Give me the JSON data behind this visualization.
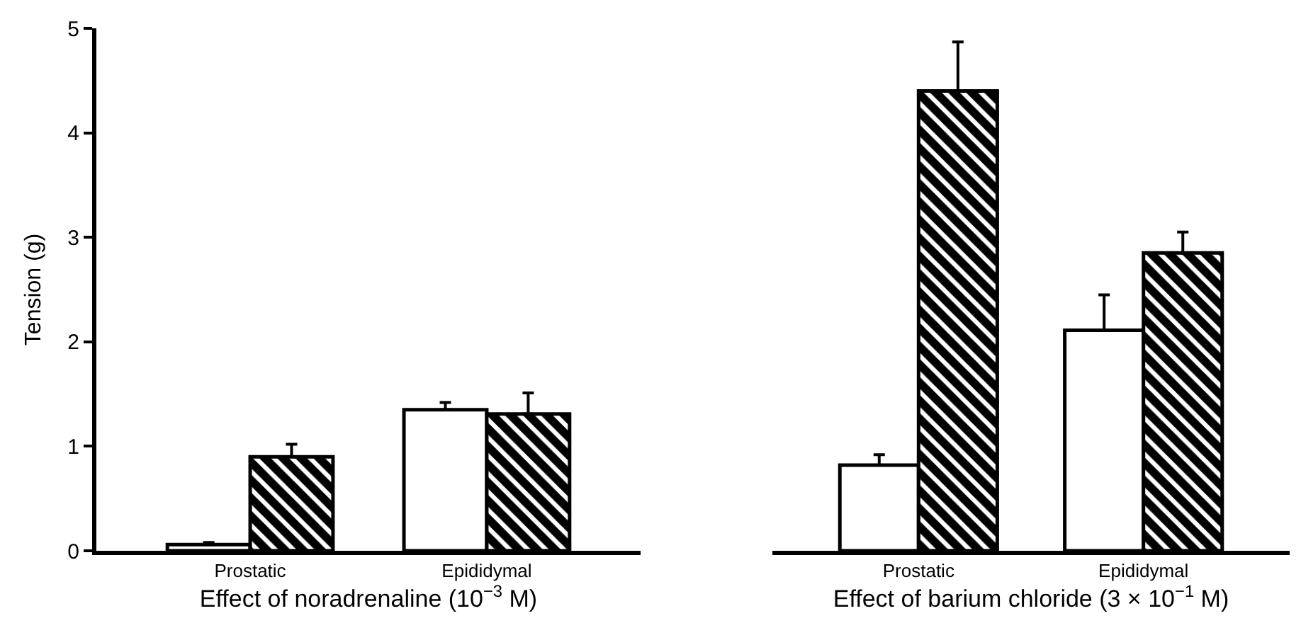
{
  "chart_data": [
    {
      "type": "bar",
      "xlabel": "Effect of noradrenaline (10$^{−3}$ M)",
      "ylabel": "Tension (g)",
      "categories": [
        "Prostatic",
        "Epididymal"
      ],
      "series": [
        {
          "color": "#ffffff",
          "values": [
            0.06,
            1.35
          ],
          "errors": [
            [
              0.06,
              0.08
            ],
            [
              1.35,
              1.42
            ]
          ]
        },
        {
          "color": "#000000",
          "values": [
            0.9,
            1.31
          ],
          "errors": [
            [
              0.9,
              1.02
            ],
            [
              1.31,
              1.51
            ]
          ]
        }
      ],
      "ylim": [
        0,
        5
      ],
      "yticks": [
        0,
        1,
        2,
        3,
        4,
        5
      ]
    },
    {
      "type": "bar",
      "xlabel": "Effect of barium chloride (3 × 10$^{−1}$ M)",
      "categories": [
        "Prostatic",
        "Epididymal"
      ],
      "series": [
        {
          "color": "#ffffff",
          "values": [
            0.82,
            2.11
          ],
          "errors": [
            [
              0.82,
              0.92
            ],
            [
              2.11,
              2.45
            ]
          ]
        },
        {
          "color": "#000000",
          "values": [
            4.4,
            2.85
          ],
          "errors": [
            [
              4.4,
              4.87
            ],
            [
              2.85,
              3.05
            ]
          ]
        }
      ],
      "ylim": [
        0,
        5
      ],
      "yticks": [
        0,
        1,
        2,
        3,
        4,
        5
      ],
      "tick_labels": "x"
    }
  ]
}
